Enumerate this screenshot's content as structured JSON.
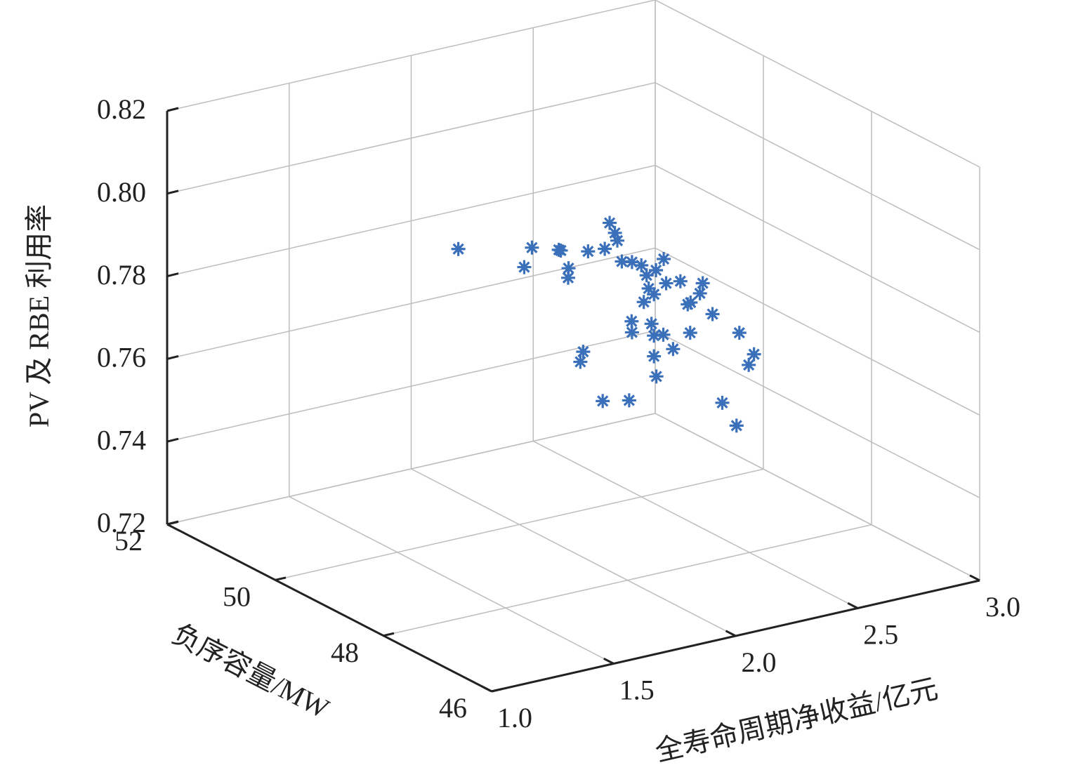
{
  "chart_data": {
    "type": "scatter3d",
    "xlabel": "全寿命周期净收益/亿元",
    "ylabel": "负序容量/MW",
    "zlabel": "PV 及 RBE 利用率",
    "color": "#3a6fba",
    "marker": "asterisk",
    "grid": true,
    "xlim": [
      1,
      3
    ],
    "ylim": [
      46,
      52
    ],
    "zlim": [
      0.72,
      0.82
    ],
    "xticks": [
      {
        "value": 1,
        "label": "1.0"
      },
      1.5,
      {
        "value": 2,
        "label": "2.0"
      },
      2.5,
      {
        "value": 3,
        "label": "3.0"
      }
    ],
    "yticks": [
      46,
      48,
      50,
      52
    ],
    "zticks": [
      0.72,
      0.74,
      0.76,
      0.78,
      {
        "value": 0.8,
        "label": "0.80"
      },
      0.82
    ],
    "x": [
      1.75,
      1.83,
      2.02,
      1.94,
      2.17,
      1.98,
      2.2,
      2.06,
      2.37,
      2.17,
      2.35,
      2.18,
      2.42,
      2.24,
      2.5,
      2.3,
      2.56,
      2.37,
      2.53,
      2.33,
      2.51,
      2.38,
      2.66,
      2.53,
      2.74,
      2.48,
      2.69,
      2.57,
      2.46,
      2.32,
      2.24,
      2.59,
      2.33,
      2.7,
      2.33,
      2.63,
      2.04,
      2.25,
      2.34,
      2.68,
      2.74,
      2.94,
      2.12,
      2.45,
      2.61,
      2.89
    ],
    "y": [
      50,
      49,
      50,
      49,
      50,
      49,
      50,
      49,
      50,
      49,
      50,
      49,
      50,
      49,
      50,
      49,
      50,
      49,
      50,
      49,
      50,
      49,
      50,
      49,
      50,
      49,
      50,
      49,
      50,
      49,
      49,
      50,
      49,
      50,
      49,
      50,
      49,
      50,
      49,
      49,
      49,
      50,
      49,
      50,
      49,
      50
    ],
    "z": [
      0.79,
      0.796,
      0.782,
      0.794,
      0.784,
      0.789,
      0.777,
      0.792,
      0.788,
      0.795,
      0.782,
      0.793,
      0.778,
      0.787,
      0.776,
      0.783,
      0.774,
      0.786,
      0.77,
      0.778,
      0.767,
      0.78,
      0.77,
      0.778,
      0.766,
      0.774,
      0.764,
      0.77,
      0.763,
      0.771,
      0.77,
      0.758,
      0.768,
      0.757,
      0.763,
      0.754,
      0.768,
      0.756,
      0.758,
      0.764,
      0.758,
      0.746,
      0.755,
      0.744,
      0.748,
      0.732
    ]
  }
}
